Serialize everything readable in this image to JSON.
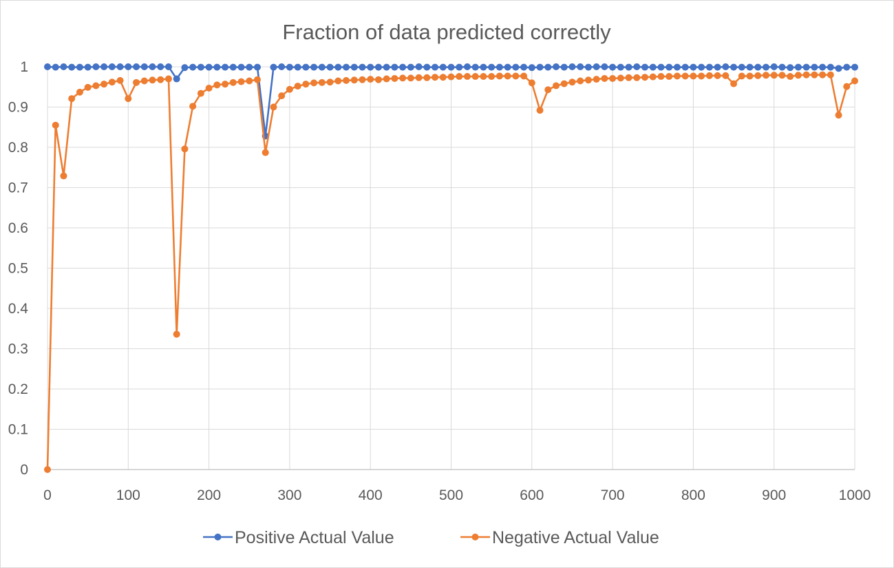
{
  "chart_data": {
    "type": "line",
    "title": "Fraction of data predicted correctly",
    "xlabel": "",
    "ylabel": "",
    "xlim": [
      0,
      1000
    ],
    "ylim": [
      0,
      1
    ],
    "x_ticks": [
      0,
      100,
      200,
      300,
      400,
      500,
      600,
      700,
      800,
      900,
      1000
    ],
    "y_ticks": [
      0,
      0.1,
      0.2,
      0.3,
      0.4,
      0.5,
      0.6,
      0.7,
      0.8,
      0.9,
      1
    ],
    "x_tick_labels": [
      "0",
      "100",
      "200",
      "300",
      "400",
      "500",
      "600",
      "700",
      "800",
      "900",
      "1000"
    ],
    "y_tick_labels": [
      "0",
      "0.1",
      "0.2",
      "0.3",
      "0.4",
      "0.5",
      "0.6",
      "0.7",
      "0.8",
      "0.9",
      "1"
    ],
    "grid": "vertical and horizontal",
    "legend_position": "bottom",
    "x": [
      0,
      10,
      20,
      30,
      40,
      50,
      60,
      70,
      80,
      90,
      100,
      110,
      120,
      130,
      140,
      150,
      160,
      170,
      180,
      190,
      200,
      210,
      220,
      230,
      240,
      250,
      260,
      270,
      280,
      290,
      300,
      310,
      320,
      330,
      340,
      350,
      360,
      370,
      380,
      390,
      400,
      410,
      420,
      430,
      440,
      450,
      460,
      470,
      480,
      490,
      500,
      510,
      520,
      530,
      540,
      550,
      560,
      570,
      580,
      590,
      600,
      610,
      620,
      630,
      640,
      650,
      660,
      670,
      680,
      690,
      700,
      710,
      720,
      730,
      740,
      750,
      760,
      770,
      780,
      790,
      800,
      810,
      820,
      830,
      840,
      850,
      860,
      870,
      880,
      890,
      900,
      910,
      920,
      930,
      940,
      950,
      960,
      970,
      980,
      990,
      1000
    ],
    "series": [
      {
        "name": "Positive Actual Value",
        "color": "#4472C4",
        "values": [
          1,
          0.999,
          1,
          0.999,
          0.999,
          0.999,
          1,
          1,
          1,
          1,
          1,
          1,
          1,
          1,
          1,
          1,
          0.97,
          0.998,
          0.999,
          0.999,
          0.999,
          0.999,
          0.999,
          0.999,
          0.999,
          0.999,
          0.999,
          0.828,
          0.999,
          1,
          0.999,
          0.999,
          0.999,
          0.999,
          0.999,
          0.999,
          0.999,
          0.999,
          0.999,
          0.999,
          0.999,
          0.999,
          0.999,
          0.999,
          0.999,
          0.999,
          1,
          0.999,
          0.999,
          0.999,
          0.999,
          0.999,
          1,
          0.999,
          0.999,
          0.999,
          0.999,
          0.999,
          0.999,
          0.999,
          0.998,
          0.999,
          0.999,
          1,
          0.999,
          1,
          1,
          0.999,
          1,
          1,
          0.999,
          0.999,
          0.999,
          1,
          0.999,
          0.999,
          0.999,
          0.999,
          0.999,
          0.999,
          0.999,
          0.999,
          0.999,
          0.999,
          1,
          0.999,
          0.999,
          0.999,
          0.999,
          0.999,
          1,
          0.999,
          0.998,
          0.999,
          0.999,
          0.999,
          0.999,
          0.999,
          0.996,
          0.999,
          0.999
        ]
      },
      {
        "name": "Negative Actual Value",
        "color": "#ED7D31",
        "values": [
          0,
          0.855,
          0.729,
          0.921,
          0.937,
          0.949,
          0.953,
          0.957,
          0.962,
          0.966,
          0.921,
          0.961,
          0.965,
          0.967,
          0.968,
          0.97,
          0.336,
          0.796,
          0.902,
          0.934,
          0.947,
          0.955,
          0.957,
          0.961,
          0.963,
          0.965,
          0.968,
          0.787,
          0.9,
          0.928,
          0.944,
          0.952,
          0.957,
          0.96,
          0.961,
          0.962,
          0.965,
          0.966,
          0.967,
          0.968,
          0.969,
          0.968,
          0.97,
          0.971,
          0.972,
          0.972,
          0.973,
          0.973,
          0.974,
          0.974,
          0.975,
          0.976,
          0.976,
          0.976,
          0.976,
          0.976,
          0.977,
          0.977,
          0.977,
          0.977,
          0.96,
          0.892,
          0.943,
          0.953,
          0.958,
          0.962,
          0.965,
          0.967,
          0.969,
          0.971,
          0.971,
          0.972,
          0.973,
          0.973,
          0.974,
          0.975,
          0.976,
          0.976,
          0.977,
          0.977,
          0.977,
          0.977,
          0.978,
          0.978,
          0.978,
          0.958,
          0.977,
          0.977,
          0.978,
          0.979,
          0.979,
          0.979,
          0.976,
          0.979,
          0.98,
          0.98,
          0.98,
          0.98,
          0.88,
          0.951,
          0.965
        ]
      }
    ]
  }
}
